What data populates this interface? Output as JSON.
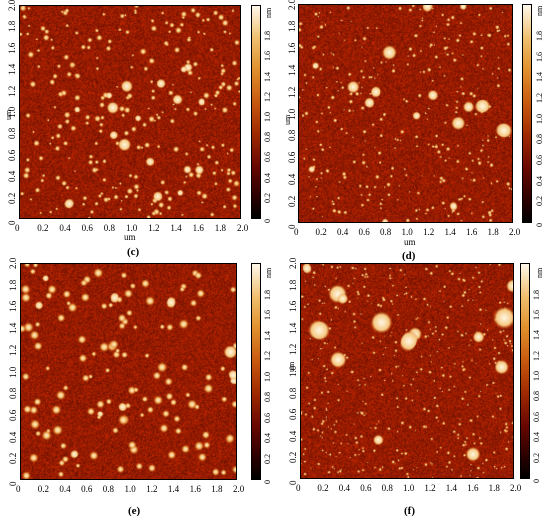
{
  "figure": {
    "panels": [
      {
        "id": "c",
        "caption": "(c)"
      },
      {
        "id": "d",
        "caption": "(d)"
      },
      {
        "id": "e",
        "caption": "(e)"
      },
      {
        "id": "f",
        "caption": "(f)"
      }
    ],
    "axis_unit": "um",
    "colorbar_unit": "nm",
    "axis_ticks": [
      "0",
      "0.2",
      "0.4",
      "0.6",
      "0.8",
      "1.0",
      "1.2",
      "1.4",
      "1.6",
      "1.8",
      "2.0"
    ],
    "colorbar_ticks_cd": [
      "0",
      "0.2",
      "0.4",
      "0.6",
      "0.8",
      "1.0",
      "1.2",
      "1.4",
      "1.6",
      "1.8"
    ],
    "colorbar_ticks_ef": [
      "0",
      "0.2",
      "0.4",
      "0.6",
      "0.8",
      "1.0",
      "1.2",
      "1.4",
      "1.6",
      "1.8"
    ],
    "colors": {
      "dark": "#5a0c00",
      "mid": "#9a2a00",
      "bright": "#f4d28a"
    }
  }
}
